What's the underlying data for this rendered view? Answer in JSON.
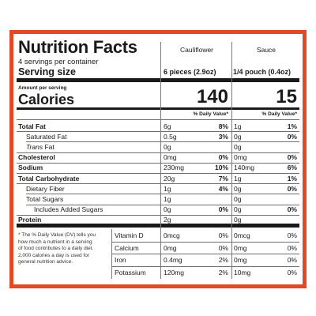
{
  "title": "Nutrition Facts",
  "servings_per_container": "4 servings per container",
  "serving_size_label": "Serving size",
  "columns": [
    {
      "name": "Cauliflower",
      "serving": "6 pieces (2.9oz)",
      "calories": "140"
    },
    {
      "name": "Sauce",
      "serving": "1/4 pouch (0.4oz)",
      "calories": "15"
    }
  ],
  "amount_per_serving": "Amount per serving",
  "calories_label": "Calories",
  "dv_header": "% Daily Value*",
  "nutrients": [
    {
      "label": "Total Fat",
      "bold": true,
      "indent": 0,
      "c_amt": "6g",
      "c_dv": "8%",
      "s_amt": "1g",
      "s_dv": "1%"
    },
    {
      "label": "Saturated Fat",
      "bold": false,
      "indent": 1,
      "c_amt": "0.5g",
      "c_dv": "3%",
      "s_amt": "0g",
      "s_dv": "0%"
    },
    {
      "label": "Trans Fat",
      "bold": false,
      "indent": 1,
      "italic_word": "Trans",
      "c_amt": "0g",
      "c_dv": "",
      "s_amt": "0g",
      "s_dv": ""
    },
    {
      "label": "Cholesterol",
      "bold": true,
      "indent": 0,
      "c_amt": "0mg",
      "c_dv": "0%",
      "s_amt": "0mg",
      "s_dv": "0%"
    },
    {
      "label": "Sodium",
      "bold": true,
      "indent": 0,
      "c_amt": "230mg",
      "c_dv": "10%",
      "s_amt": "140mg",
      "s_dv": "6%"
    },
    {
      "label": "Total Carbohydrate",
      "bold": true,
      "indent": 0,
      "c_amt": "20g",
      "c_dv": "7%",
      "s_amt": "1g",
      "s_dv": "1%"
    },
    {
      "label": "Dietary Fiber",
      "bold": false,
      "indent": 1,
      "c_amt": "1g",
      "c_dv": "4%",
      "s_amt": "0g",
      "s_dv": "0%"
    },
    {
      "label": "Total Sugars",
      "bold": false,
      "indent": 1,
      "c_amt": "1g",
      "c_dv": "",
      "s_amt": "0g",
      "s_dv": ""
    },
    {
      "label": "Includes Added Sugars",
      "bold": false,
      "indent": 2,
      "c_amt": "0g",
      "c_dv": "0%",
      "s_amt": "0g",
      "s_dv": "0%"
    },
    {
      "label": "Protein",
      "bold": true,
      "indent": 0,
      "c_amt": "2g",
      "c_dv": "",
      "s_amt": "0g",
      "s_dv": ""
    }
  ],
  "footnote": "* The % Daily Value (DV) tells you how much a nutrient in a serving of food contributes to a daily diet. 2,000 calories a day is used for general nutrition advice.",
  "footnote_lines": [
    "* The % Daily Value (DV) tells you",
    "how much a nutrient in a serving",
    "of food contributes to a daily diet.",
    "2,000 calories a day is used for",
    "general nutrition advice."
  ],
  "vitamins": [
    {
      "label": "Vitamin D",
      "c_amt": "0mcg",
      "c_dv": "0%",
      "s_amt": "0mcg",
      "s_dv": "0%"
    },
    {
      "label": "Calcium",
      "c_amt": "0mg",
      "c_dv": "0%",
      "s_amt": "0mg",
      "s_dv": "0%"
    },
    {
      "label": "Iron",
      "c_amt": "0.4mg",
      "c_dv": "2%",
      "s_amt": "0mg",
      "s_dv": "0%"
    },
    {
      "label": "Potassium",
      "c_amt": "120mg",
      "c_dv": "2%",
      "s_amt": "10mg",
      "s_dv": "0%"
    }
  ],
  "colors": {
    "border": "#e04a24",
    "ink": "#1a1a1a"
  }
}
